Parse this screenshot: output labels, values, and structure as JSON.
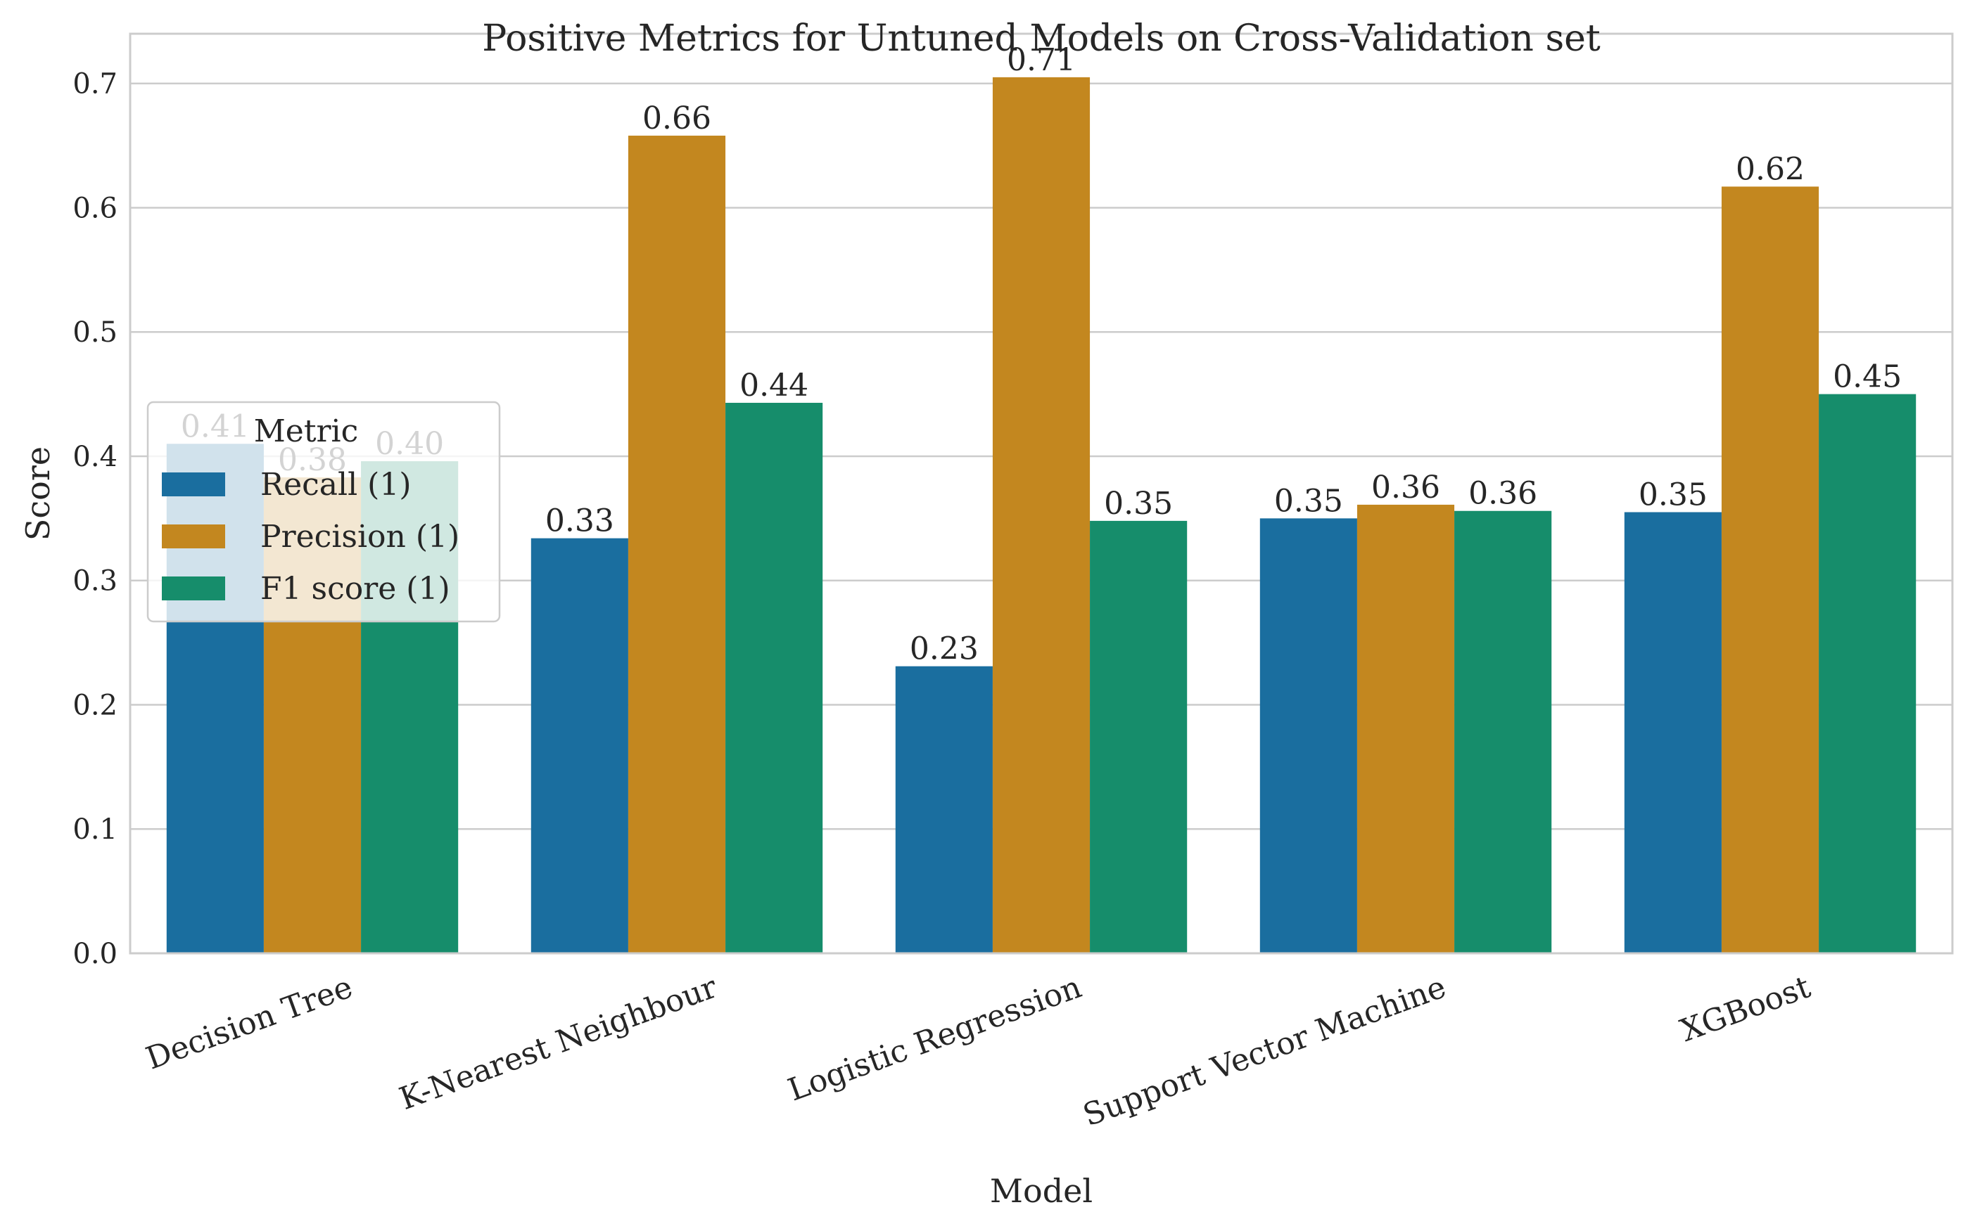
{
  "chart_data": {
    "type": "bar",
    "title": "Positive Metrics for Untuned Models on Cross-Validation set",
    "xlabel": "Model",
    "ylabel": "Score",
    "ylim": [
      0,
      0.74
    ],
    "yticks": [
      "0.0",
      "0.1",
      "0.2",
      "0.3",
      "0.4",
      "0.5",
      "0.6",
      "0.7"
    ],
    "grid": true,
    "categories": [
      "Decision Tree",
      "K-Nearest Neighbour",
      "Logistic Regression",
      "Support Vector Machine",
      "XGBoost"
    ],
    "series": [
      {
        "name": "Recall (1)",
        "color": "#1a6e9f",
        "values": [
          0.41,
          0.334,
          0.231,
          0.35,
          0.355
        ],
        "labels": [
          "0.41",
          "0.33",
          "0.23",
          "0.35",
          "0.35"
        ]
      },
      {
        "name": "Precision (1)",
        "color": "#c3871f",
        "values": [
          0.383,
          0.658,
          0.705,
          0.361,
          0.617
        ],
        "labels": [
          "0.38",
          "0.66",
          "0.71",
          "0.36",
          "0.62"
        ]
      },
      {
        "name": "F1 score (1)",
        "color": "#168d6b",
        "values": [
          0.396,
          0.443,
          0.348,
          0.356,
          0.45
        ],
        "labels": [
          "0.40",
          "0.44",
          "0.35",
          "0.36",
          "0.45"
        ]
      }
    ],
    "legend": {
      "title": "Metric",
      "placement": "center-left"
    }
  }
}
